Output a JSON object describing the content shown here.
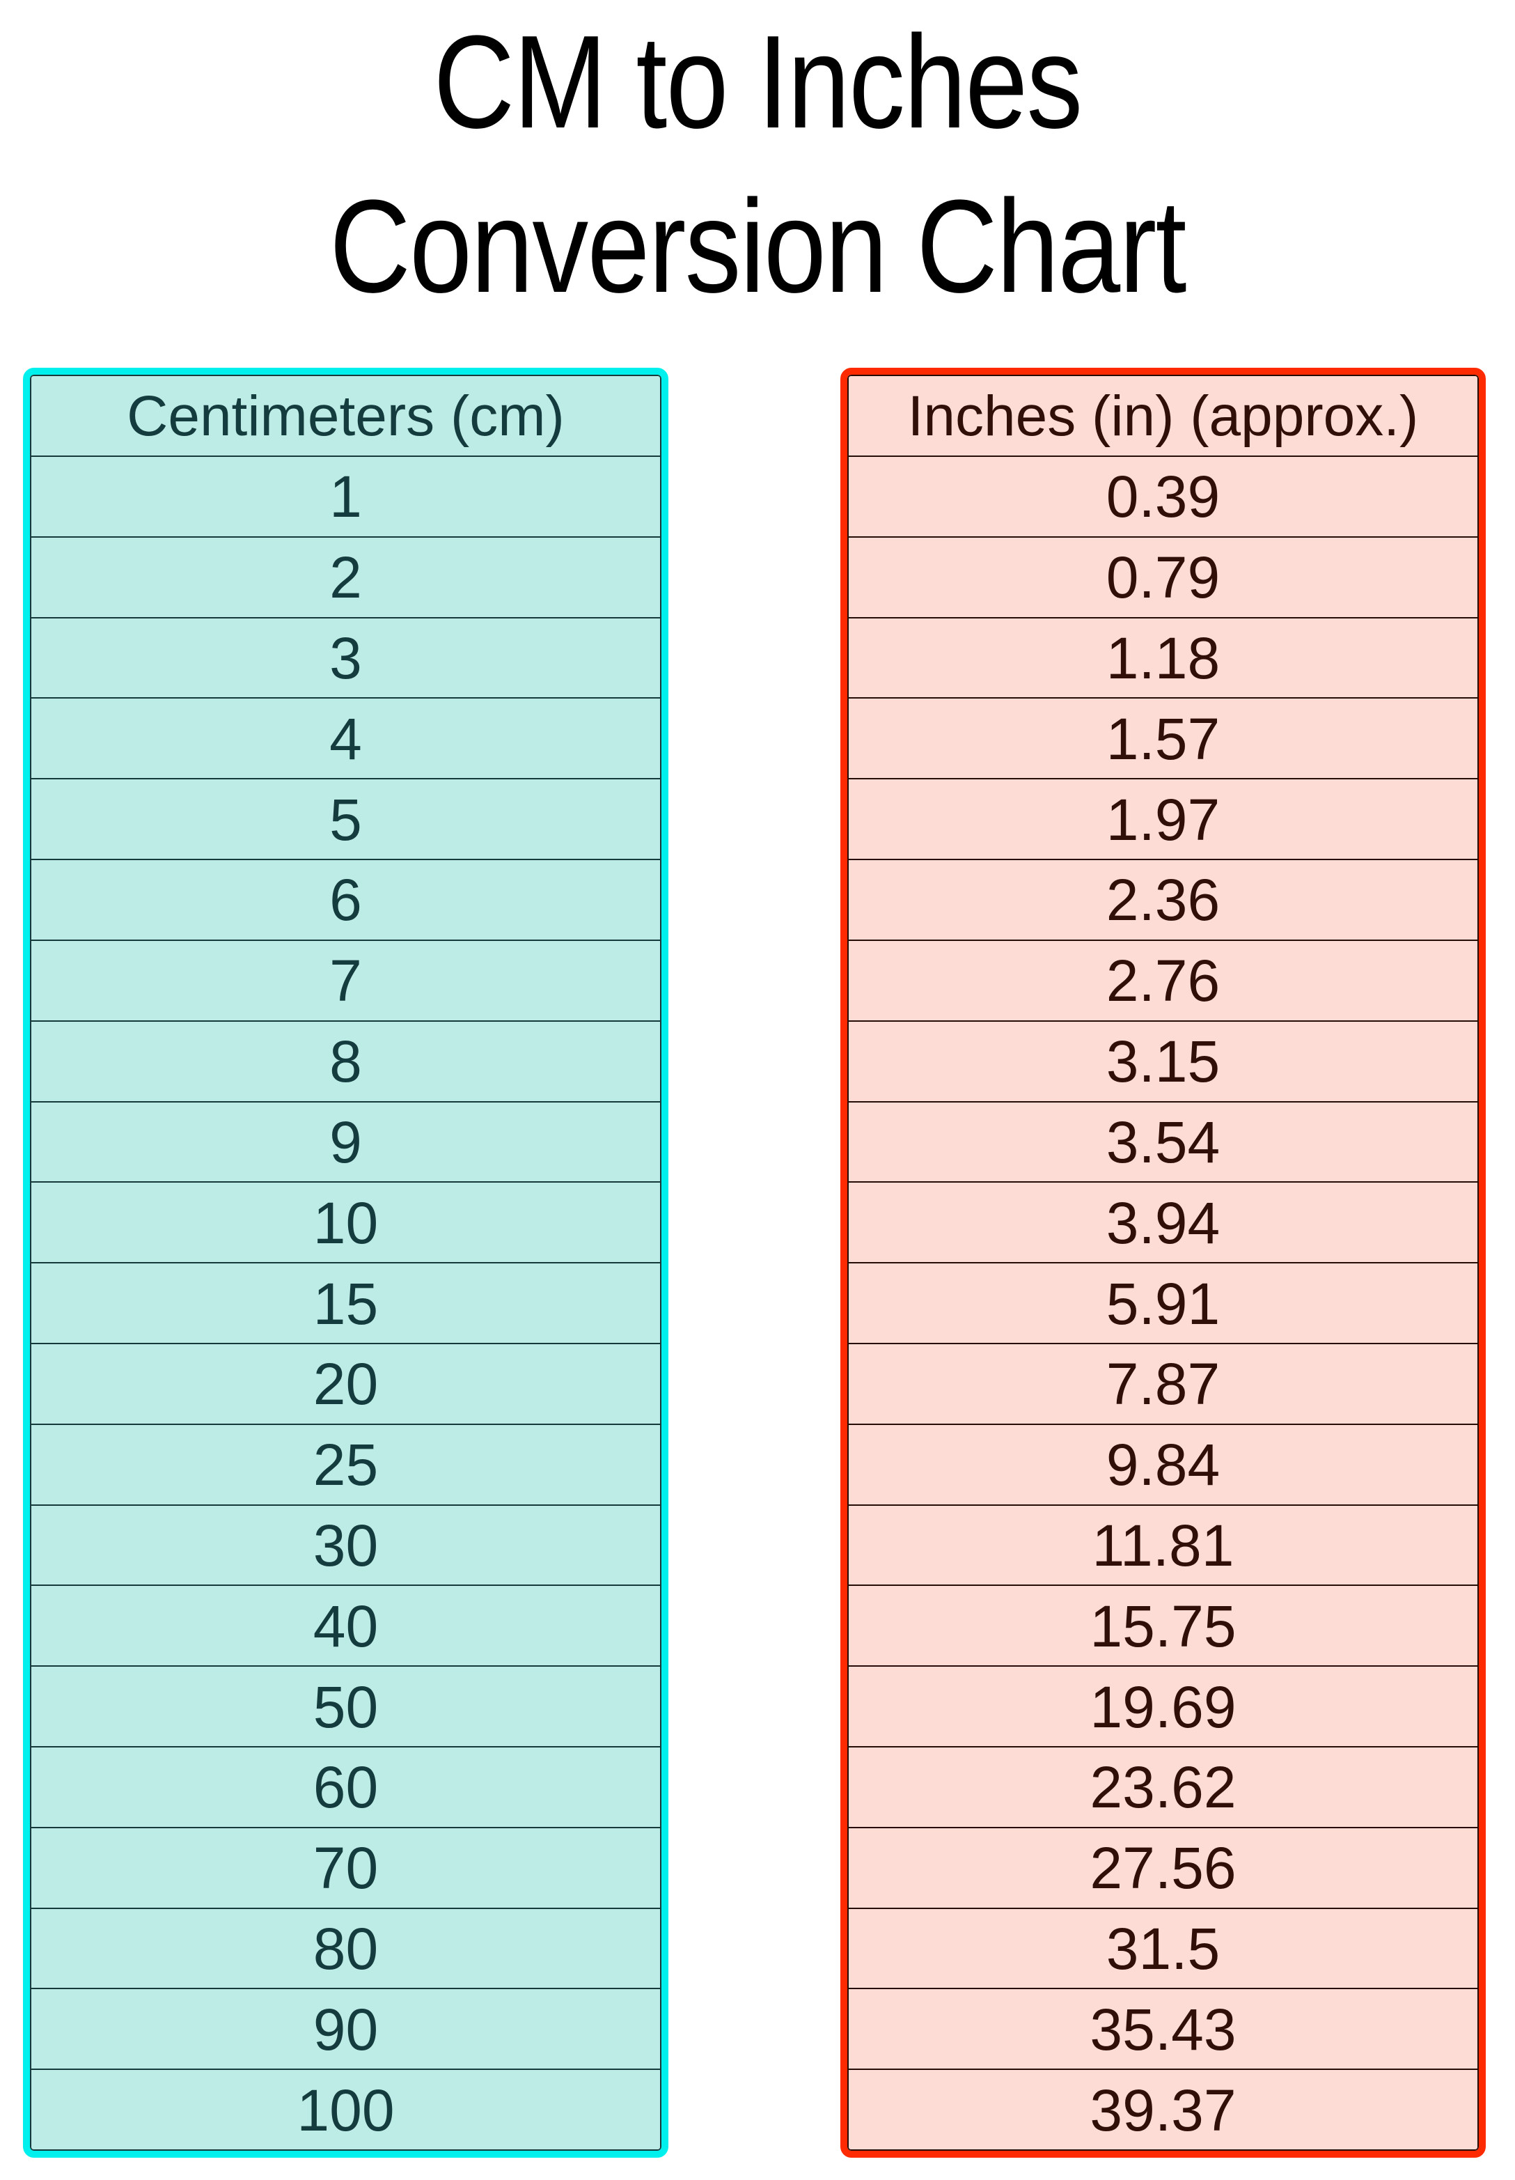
{
  "page": {
    "title_line1": "CM to Inches",
    "title_line2": "Conversion Chart"
  },
  "tables": [
    {
      "id": "centimeters",
      "header": "Centimeters (cm)",
      "rows": [
        "1",
        "2",
        "3",
        "4",
        "5",
        "6",
        "7",
        "8",
        "9",
        "10",
        "15",
        "20",
        "25",
        "30",
        "40",
        "50",
        "60",
        "70",
        "80",
        "90",
        "100"
      ],
      "colors": {
        "border": "#00F1ED",
        "background": "#BDEBE6",
        "text": "#143B3D",
        "line": "#16393B"
      }
    },
    {
      "id": "inches",
      "header": "Inches (in) (approx.)",
      "rows": [
        "0.39",
        "0.79",
        "1.18",
        "1.57",
        "1.97",
        "2.36",
        "2.76",
        "3.15",
        "3.54",
        "3.94",
        "5.91",
        "7.87",
        "9.84",
        "11.81",
        "15.75",
        "19.69",
        "23.62",
        "27.56",
        "31.5",
        "35.43",
        "39.37"
      ],
      "colors": {
        "border": "#FD2A02",
        "background": "#FCDCD4",
        "text": "#300F08",
        "line": "#250C06"
      }
    }
  ],
  "chart_data": {
    "type": "table",
    "title": "CM to Inches Conversion Chart",
    "columns": [
      "Centimeters (cm)",
      "Inches (in) (approx.)"
    ],
    "rows": [
      [
        1,
        0.39
      ],
      [
        2,
        0.79
      ],
      [
        3,
        1.18
      ],
      [
        4,
        1.57
      ],
      [
        5,
        1.97
      ],
      [
        6,
        2.36
      ],
      [
        7,
        2.76
      ],
      [
        8,
        3.15
      ],
      [
        9,
        3.54
      ],
      [
        10,
        3.94
      ],
      [
        15,
        5.91
      ],
      [
        20,
        7.87
      ],
      [
        25,
        9.84
      ],
      [
        30,
        11.81
      ],
      [
        40,
        15.75
      ],
      [
        50,
        19.69
      ],
      [
        60,
        23.62
      ],
      [
        70,
        27.56
      ],
      [
        80,
        31.5
      ],
      [
        90,
        35.43
      ],
      [
        100,
        39.37
      ]
    ]
  }
}
